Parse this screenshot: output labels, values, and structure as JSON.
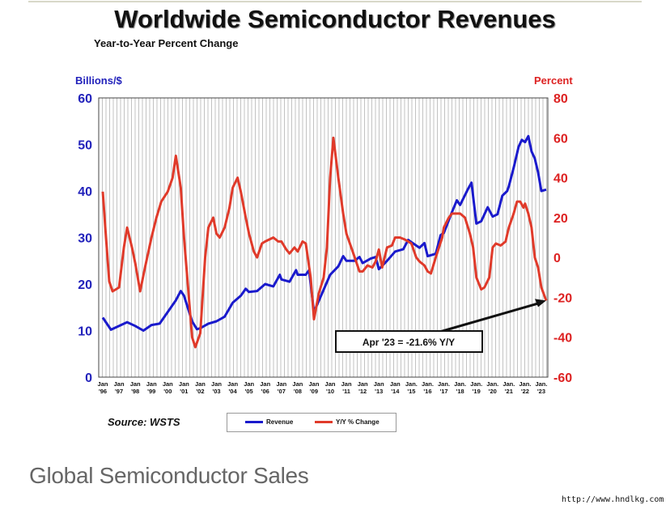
{
  "title": "Worldwide Semiconductor Revenues",
  "subtitle": "Year-to-Year Percent Change",
  "left_axis_label": "Billions/$",
  "right_axis_label": "Percent",
  "source": "Source: WSTS",
  "caption": "Global Semiconductor Sales",
  "watermark": "http://www.hndlkg.com",
  "colors": {
    "revenue": "#1a1acc",
    "change": "#e03a2a",
    "left_axis": "#2222bb",
    "right_axis": "#dd2222"
  },
  "chart_data": {
    "type": "line",
    "title": "Worldwide Semiconductor Revenues",
    "subtitle": "Year-to-Year Percent Change",
    "x_tick_labels": [
      "Jan '96",
      "Jan '97",
      "Jan '98",
      "Jan '99",
      "Jan '00",
      "Jan '01",
      "Jan '02",
      "Jan '03",
      "Jan '04",
      "Jan '05",
      "Jan '06",
      "Jan '07",
      "Jan '08",
      "Jan '09",
      "Jan '10",
      "Jan '11",
      "Jan '12",
      "Jan '13",
      "Jan '14",
      "Jan. '15",
      "Jan. '16",
      "Jan. '17",
      "Jan. '18",
      "Jan. '19",
      "Jan. '20",
      "Jan. '21",
      "Jan. '22",
      "Jan. '23"
    ],
    "left_axis": {
      "label": "Billions/$",
      "ylim": [
        0,
        60
      ],
      "ticks": [
        0,
        10,
        20,
        30,
        40,
        50,
        60
      ]
    },
    "right_axis": {
      "label": "Percent",
      "ylim": [
        -60,
        80
      ],
      "ticks": [
        -60,
        -40,
        -20,
        0,
        20,
        40,
        60,
        80
      ]
    },
    "grid": "vertical",
    "legend_position": "bottom",
    "series": [
      {
        "name": "Revenue",
        "axis": "left",
        "points": [
          [
            1996.0,
            12.8
          ],
          [
            1996.5,
            10.2
          ],
          [
            1997.0,
            11.0
          ],
          [
            1997.5,
            11.8
          ],
          [
            1998.0,
            11.0
          ],
          [
            1998.5,
            10.0
          ],
          [
            1999.0,
            11.2
          ],
          [
            1999.5,
            11.5
          ],
          [
            2000.0,
            14.0
          ],
          [
            2000.5,
            16.5
          ],
          [
            2000.8,
            18.5
          ],
          [
            2001.0,
            17.5
          ],
          [
            2001.5,
            12.0
          ],
          [
            2001.8,
            10.3
          ],
          [
            2002.0,
            10.5
          ],
          [
            2002.5,
            11.5
          ],
          [
            2003.0,
            12.0
          ],
          [
            2003.5,
            13.0
          ],
          [
            2004.0,
            16.0
          ],
          [
            2004.5,
            17.5
          ],
          [
            2004.8,
            19.0
          ],
          [
            2005.0,
            18.3
          ],
          [
            2005.5,
            18.5
          ],
          [
            2006.0,
            20.0
          ],
          [
            2006.5,
            19.5
          ],
          [
            2006.9,
            22.0
          ],
          [
            2007.0,
            21.0
          ],
          [
            2007.5,
            20.5
          ],
          [
            2007.9,
            23.0
          ],
          [
            2008.0,
            22.0
          ],
          [
            2008.5,
            22.0
          ],
          [
            2008.7,
            23.0
          ],
          [
            2009.0,
            14.0
          ],
          [
            2009.5,
            18.0
          ],
          [
            2010.0,
            22.0
          ],
          [
            2010.5,
            23.8
          ],
          [
            2010.8,
            26.0
          ],
          [
            2011.0,
            25.0
          ],
          [
            2011.5,
            25.0
          ],
          [
            2011.8,
            25.8
          ],
          [
            2012.0,
            24.5
          ],
          [
            2012.5,
            25.5
          ],
          [
            2012.8,
            25.8
          ],
          [
            2013.0,
            23.2
          ],
          [
            2013.5,
            25.0
          ],
          [
            2014.0,
            27.0
          ],
          [
            2014.5,
            27.5
          ],
          [
            2014.8,
            29.5
          ],
          [
            2015.0,
            29.0
          ],
          [
            2015.5,
            27.8
          ],
          [
            2015.8,
            28.8
          ],
          [
            2016.0,
            26.0
          ],
          [
            2016.5,
            26.5
          ],
          [
            2016.8,
            30.5
          ],
          [
            2017.0,
            31.0
          ],
          [
            2017.5,
            35.5
          ],
          [
            2017.8,
            38.0
          ],
          [
            2018.0,
            37.0
          ],
          [
            2018.5,
            40.5
          ],
          [
            2018.7,
            41.8
          ],
          [
            2019.0,
            33.0
          ],
          [
            2019.3,
            33.5
          ],
          [
            2019.7,
            36.5
          ],
          [
            2020.0,
            34.5
          ],
          [
            2020.3,
            35.0
          ],
          [
            2020.6,
            39.0
          ],
          [
            2020.9,
            40.0
          ],
          [
            2021.0,
            41.0
          ],
          [
            2021.3,
            45.0
          ],
          [
            2021.6,
            49.5
          ],
          [
            2021.8,
            51.0
          ],
          [
            2022.0,
            50.5
          ],
          [
            2022.2,
            51.8
          ],
          [
            2022.4,
            48.5
          ],
          [
            2022.6,
            47.0
          ],
          [
            2022.8,
            44.0
          ],
          [
            2023.0,
            40.0
          ],
          [
            2023.3,
            40.3
          ]
        ]
      },
      {
        "name": "Y/Y % Change",
        "axis": "right",
        "points": [
          [
            1996.0,
            33
          ],
          [
            1996.2,
            10
          ],
          [
            1996.4,
            -12
          ],
          [
            1996.6,
            -17
          ],
          [
            1996.8,
            -16
          ],
          [
            1997.0,
            -15
          ],
          [
            1997.3,
            5
          ],
          [
            1997.5,
            15
          ],
          [
            1997.8,
            5
          ],
          [
            1998.0,
            -3
          ],
          [
            1998.3,
            -17
          ],
          [
            1998.6,
            -5
          ],
          [
            1999.0,
            10
          ],
          [
            1999.3,
            20
          ],
          [
            1999.6,
            28
          ],
          [
            2000.0,
            33
          ],
          [
            2000.3,
            40
          ],
          [
            2000.5,
            51
          ],
          [
            2000.8,
            35
          ],
          [
            2001.0,
            10
          ],
          [
            2001.3,
            -20
          ],
          [
            2001.5,
            -40
          ],
          [
            2001.7,
            -45
          ],
          [
            2002.0,
            -38
          ],
          [
            2002.3,
            0
          ],
          [
            2002.5,
            15
          ],
          [
            2002.8,
            20
          ],
          [
            2003.0,
            12
          ],
          [
            2003.2,
            10
          ],
          [
            2003.5,
            15
          ],
          [
            2003.8,
            25
          ],
          [
            2004.0,
            35
          ],
          [
            2004.3,
            40
          ],
          [
            2004.5,
            33
          ],
          [
            2004.8,
            20
          ],
          [
            2005.0,
            12
          ],
          [
            2005.3,
            3
          ],
          [
            2005.5,
            0
          ],
          [
            2005.8,
            7
          ],
          [
            2006.0,
            8
          ],
          [
            2006.5,
            10
          ],
          [
            2006.8,
            8
          ],
          [
            2007.0,
            8
          ],
          [
            2007.3,
            4
          ],
          [
            2007.5,
            2
          ],
          [
            2007.8,
            5
          ],
          [
            2008.0,
            3
          ],
          [
            2008.3,
            8
          ],
          [
            2008.5,
            7
          ],
          [
            2008.8,
            -10
          ],
          [
            2009.0,
            -31
          ],
          [
            2009.3,
            -18
          ],
          [
            2009.6,
            -10
          ],
          [
            2009.8,
            5
          ],
          [
            2010.0,
            40
          ],
          [
            2010.2,
            60
          ],
          [
            2010.5,
            40
          ],
          [
            2010.8,
            22
          ],
          [
            2011.0,
            12
          ],
          [
            2011.3,
            5
          ],
          [
            2011.6,
            -2
          ],
          [
            2011.8,
            -7
          ],
          [
            2012.0,
            -7
          ],
          [
            2012.3,
            -4
          ],
          [
            2012.6,
            -5
          ],
          [
            2012.8,
            -2
          ],
          [
            2013.0,
            4
          ],
          [
            2013.2,
            -5
          ],
          [
            2013.5,
            5
          ],
          [
            2013.8,
            6
          ],
          [
            2014.0,
            10
          ],
          [
            2014.3,
            10
          ],
          [
            2014.6,
            9
          ],
          [
            2014.8,
            8
          ],
          [
            2015.0,
            7
          ],
          [
            2015.3,
            0
          ],
          [
            2015.5,
            -2
          ],
          [
            2015.8,
            -4
          ],
          [
            2016.0,
            -7
          ],
          [
            2016.2,
            -8
          ],
          [
            2016.5,
            0
          ],
          [
            2016.7,
            5
          ],
          [
            2016.9,
            10
          ],
          [
            2017.0,
            15
          ],
          [
            2017.3,
            20
          ],
          [
            2017.5,
            22
          ],
          [
            2017.8,
            22
          ],
          [
            2018.0,
            22
          ],
          [
            2018.3,
            20
          ],
          [
            2018.6,
            12
          ],
          [
            2018.8,
            5
          ],
          [
            2019.0,
            -10
          ],
          [
            2019.3,
            -16
          ],
          [
            2019.5,
            -15
          ],
          [
            2019.8,
            -10
          ],
          [
            2020.0,
            5
          ],
          [
            2020.2,
            7
          ],
          [
            2020.5,
            6
          ],
          [
            2020.8,
            8
          ],
          [
            2021.0,
            15
          ],
          [
            2021.3,
            22
          ],
          [
            2021.5,
            28
          ],
          [
            2021.7,
            28
          ],
          [
            2021.9,
            25
          ],
          [
            2022.0,
            27
          ],
          [
            2022.2,
            22
          ],
          [
            2022.4,
            15
          ],
          [
            2022.6,
            0
          ],
          [
            2022.8,
            -5
          ],
          [
            2023.0,
            -15
          ],
          [
            2023.3,
            -21.6
          ]
        ]
      }
    ],
    "annotation": {
      "text": "Apr '23 = -21.6% Y/Y",
      "x": 2023.3,
      "y": -21.6,
      "axis": "right"
    },
    "legend": [
      {
        "name": "Revenue",
        "color": "#1a1acc"
      },
      {
        "name": "Y/Y % Change",
        "color": "#e03a2a"
      }
    ]
  }
}
